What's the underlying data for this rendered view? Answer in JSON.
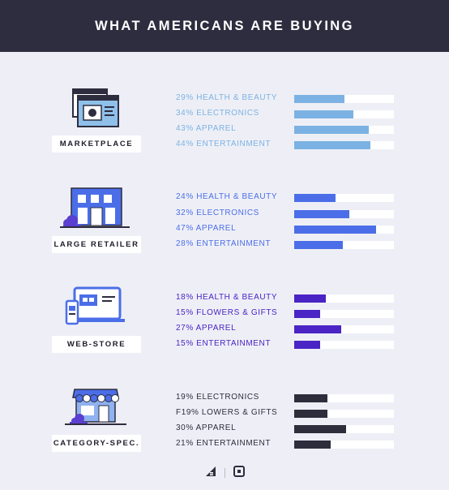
{
  "title": "WHAT AMERICANS ARE BUYING",
  "chart_data": {
    "type": "bar",
    "orientation": "horizontal",
    "xlim": [
      0,
      100
    ],
    "groups": [
      {
        "name": "MARKETPLACE",
        "icon": "marketplace-icon",
        "color": "#7cb2e3",
        "items": [
          {
            "label": "29% HEALTH & BEAUTY",
            "value": 29
          },
          {
            "label": "34% ELECTRONICS",
            "value": 34
          },
          {
            "label": "43% APPAREL",
            "value": 43
          },
          {
            "label": "44% ENTERTAINMENT",
            "value": 44
          }
        ]
      },
      {
        "name": "LARGE RETAILER",
        "icon": "large-retailer-icon",
        "color": "#4b6ee8",
        "items": [
          {
            "label": "24% HEALTH & BEAUTY",
            "value": 24
          },
          {
            "label": "32% ELECTRONICS",
            "value": 32
          },
          {
            "label": "47% APPAREL",
            "value": 47
          },
          {
            "label": "28% ENTERTAINMENT",
            "value": 28
          }
        ]
      },
      {
        "name": "WEB-STORE",
        "icon": "web-store-icon",
        "color": "#4a24c4",
        "items": [
          {
            "label": "18% HEALTH & BEAUTY",
            "value": 18
          },
          {
            "label": "15% FLOWERS & GIFTS",
            "value": 15
          },
          {
            "label": "27% APPAREL",
            "value": 27
          },
          {
            "label": "15% ENTERTAINMENT",
            "value": 15
          }
        ]
      },
      {
        "name": "CATEGORY-SPEC.",
        "icon": "category-store-icon",
        "color": "#2e2d3b",
        "items": [
          {
            "label": "19% ELECTRONICS",
            "value": 19
          },
          {
            "label": "F19% LOWERS & GIFTS",
            "value": 19
          },
          {
            "label": "30% APPAREL",
            "value": 30
          },
          {
            "label": "21% ENTERTAINMENT",
            "value": 21
          }
        ]
      }
    ]
  },
  "footer": {
    "logos": [
      "bigcommerce-logo-icon",
      "square-logo-icon"
    ]
  }
}
